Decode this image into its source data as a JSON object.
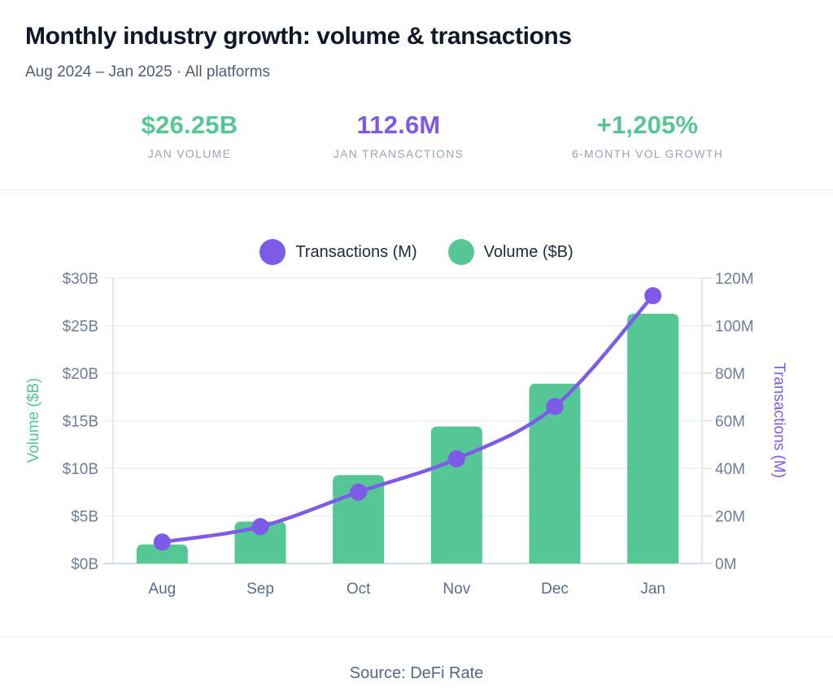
{
  "header": {
    "title": "Monthly industry growth: volume & transactions",
    "subtitle": "Aug 2024 – Jan 2025 · All platforms"
  },
  "stats": [
    {
      "value": "$26.25B",
      "label": "JAN VOLUME",
      "color": "#55C795"
    },
    {
      "value": "112.6M",
      "label": "JAN TRANSACTIONS",
      "color": "#7D5AE8"
    },
    {
      "value": "+1,205%",
      "label": "6-MONTH VOL GROWTH",
      "color": "#55C795"
    }
  ],
  "legend": [
    {
      "label": "Transactions (M)",
      "color": "#7D5AE8"
    },
    {
      "label": "Volume ($B)",
      "color": "#55C795"
    }
  ],
  "footer": {
    "source": "Source: DeFi Rate"
  },
  "colors": {
    "bar_green": "#55C795",
    "line_purple": "#7D5AE8",
    "grid": "#ECF0F7",
    "spine": "#D8DFE8",
    "baseline": "#C9D2DD",
    "tick_label": "#6F7E96",
    "x_label": "#5D6C84"
  },
  "chart_data": {
    "type": "bar",
    "subtype": "combo-bar-line",
    "categories": [
      "Aug",
      "Sep",
      "Oct",
      "Nov",
      "Dec",
      "Jan"
    ],
    "series": [
      {
        "name": "Volume ($B)",
        "type": "bar",
        "axis": "left",
        "color": "#55C795",
        "values": [
          2.0,
          4.4,
          9.3,
          14.4,
          18.9,
          26.25
        ]
      },
      {
        "name": "Transactions (M)",
        "type": "line",
        "axis": "right",
        "color": "#7D5AE8",
        "values": [
          9,
          15.5,
          30,
          44,
          66,
          112.6
        ]
      }
    ],
    "y_left": {
      "title": "Volume ($B)",
      "min": 0,
      "max": 30,
      "tick_step": 5,
      "tick_labels": [
        "$0B",
        "$5B",
        "$10B",
        "$15B",
        "$20B",
        "$25B",
        "$30B"
      ]
    },
    "y_right": {
      "title": "Transactions (M)",
      "min": 0,
      "max": 120,
      "tick_step": 20,
      "tick_labels": [
        "0M",
        "20M",
        "40M",
        "60M",
        "80M",
        "100M",
        "120M"
      ]
    },
    "grid": "horizontal",
    "legend_position": "top-center"
  }
}
